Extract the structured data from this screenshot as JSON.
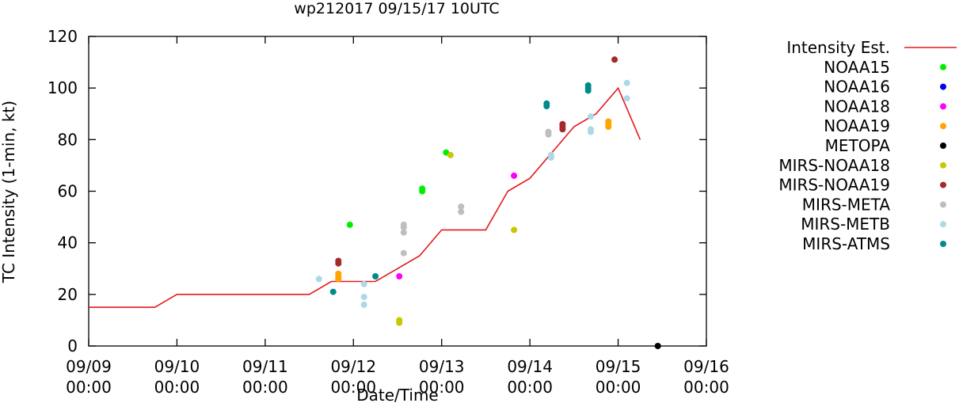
{
  "chart_data": {
    "type": "scatter",
    "title": "wp212017 09/15/17 10UTC",
    "xlabel": "Date/Time",
    "ylabel": "TC Intensity (1-min, kt)",
    "ylim": [
      0,
      120
    ],
    "yticks": [
      0,
      20,
      40,
      60,
      80,
      100,
      120
    ],
    "xlim": [
      0,
      7
    ],
    "x_unit": "days since 09/09 00:00",
    "xticks": [
      {
        "x": 0,
        "line1": "09/09",
        "line2": "00:00"
      },
      {
        "x": 1,
        "line1": "09/10",
        "line2": "00:00"
      },
      {
        "x": 2,
        "line1": "09/11",
        "line2": "00:00"
      },
      {
        "x": 3,
        "line1": "09/12",
        "line2": "00:00"
      },
      {
        "x": 4,
        "line1": "09/13",
        "line2": "00:00"
      },
      {
        "x": 5,
        "line1": "09/14",
        "line2": "00:00"
      },
      {
        "x": 6,
        "line1": "09/15",
        "line2": "00:00"
      },
      {
        "x": 7,
        "line1": "09/16",
        "line2": "00:00"
      }
    ],
    "grid": false,
    "legend_position": "right",
    "intensity_line": {
      "name": "Intensity Est.",
      "color": "#e41a1c",
      "points": [
        [
          0,
          15
        ],
        [
          0.75,
          15
        ],
        [
          1.0,
          20
        ],
        [
          1.25,
          20
        ],
        [
          1.5,
          20
        ],
        [
          1.75,
          20
        ],
        [
          2.0,
          20
        ],
        [
          2.25,
          20
        ],
        [
          2.5,
          20
        ],
        [
          2.75,
          25
        ],
        [
          3.0,
          25
        ],
        [
          3.25,
          25
        ],
        [
          3.5,
          30
        ],
        [
          3.75,
          35
        ],
        [
          4.0,
          45
        ],
        [
          4.25,
          45
        ],
        [
          4.5,
          45
        ],
        [
          4.75,
          60
        ],
        [
          5.0,
          65
        ],
        [
          5.25,
          75
        ],
        [
          5.5,
          85
        ],
        [
          5.75,
          90
        ],
        [
          6.0,
          100
        ],
        [
          6.25,
          80
        ]
      ]
    },
    "series": [
      {
        "name": "NOAA15",
        "color": "#00ee00",
        "points": [
          [
            2.96,
            47
          ],
          [
            3.78,
            60
          ],
          [
            3.78,
            61
          ],
          [
            4.05,
            75
          ]
        ]
      },
      {
        "name": "NOAA16",
        "color": "#0000ee",
        "points": []
      },
      {
        "name": "NOAA18",
        "color": "#ff00ff",
        "points": [
          [
            3.52,
            27
          ],
          [
            4.82,
            66
          ]
        ]
      },
      {
        "name": "NOAA19",
        "color": "#ffa500",
        "points": [
          [
            2.83,
            26
          ],
          [
            2.83,
            27
          ],
          [
            2.83,
            28
          ],
          [
            5.89,
            85
          ],
          [
            5.89,
            86
          ],
          [
            5.89,
            87
          ]
        ]
      },
      {
        "name": "METOPA",
        "color": "#000000",
        "points": [
          [
            6.45,
            0
          ]
        ]
      },
      {
        "name": "MIRS-NOAA18",
        "color": "#c8c800",
        "points": [
          [
            3.52,
            9
          ],
          [
            3.52,
            10
          ],
          [
            4.82,
            45
          ],
          [
            4.1,
            74
          ]
        ]
      },
      {
        "name": "MIRS-NOAA19",
        "color": "#a52a2a",
        "points": [
          [
            2.83,
            32
          ],
          [
            2.83,
            33
          ],
          [
            5.37,
            84
          ],
          [
            5.37,
            85
          ],
          [
            5.37,
            86
          ],
          [
            5.96,
            111
          ]
        ]
      },
      {
        "name": "MIRS-META",
        "color": "#bebebe",
        "points": [
          [
            3.57,
            36
          ],
          [
            3.57,
            44
          ],
          [
            3.57,
            46
          ],
          [
            3.57,
            47
          ],
          [
            4.22,
            52
          ],
          [
            4.22,
            54
          ],
          [
            5.21,
            82
          ],
          [
            5.21,
            83
          ]
        ]
      },
      {
        "name": "MIRS-METB",
        "color": "#add8e6",
        "points": [
          [
            2.61,
            26
          ],
          [
            3.12,
            16
          ],
          [
            3.12,
            19
          ],
          [
            3.12,
            24
          ],
          [
            5.24,
            73
          ],
          [
            5.24,
            74
          ],
          [
            5.69,
            83
          ],
          [
            5.69,
            84
          ],
          [
            5.69,
            89
          ],
          [
            6.1,
            96
          ],
          [
            6.1,
            102
          ]
        ]
      },
      {
        "name": "MIRS-ATMS",
        "color": "#008b8b",
        "points": [
          [
            2.77,
            21
          ],
          [
            3.25,
            27
          ],
          [
            5.19,
            93
          ],
          [
            5.19,
            94
          ],
          [
            5.66,
            99
          ],
          [
            5.66,
            100
          ],
          [
            5.66,
            101
          ]
        ]
      }
    ]
  }
}
